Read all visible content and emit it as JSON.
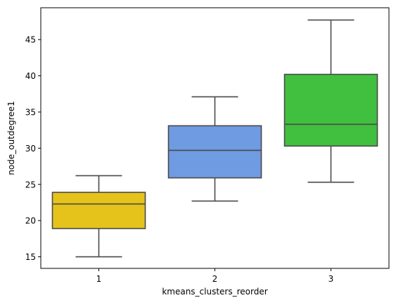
{
  "chart_data": {
    "type": "box",
    "title": "",
    "xlabel": "kmeans_clusters_reorder",
    "ylabel": "node_outdegree1",
    "ylim": [
      13.4,
      49.4
    ],
    "yticks": [
      15,
      20,
      25,
      30,
      35,
      40,
      45
    ],
    "grid": false,
    "legend": "none",
    "categories": [
      "1",
      "2",
      "3"
    ],
    "boxes": [
      {
        "category": "1",
        "whisker_low": 15.0,
        "q1": 18.9,
        "median": 22.3,
        "q3": 23.9,
        "whisker_high": 26.2,
        "color": "#E5C31B"
      },
      {
        "category": "2",
        "whisker_low": 22.7,
        "q1": 25.9,
        "median": 29.7,
        "q3": 33.1,
        "whisker_high": 37.1,
        "color": "#6F9BE2"
      },
      {
        "category": "3",
        "whisker_low": 25.3,
        "q1": 30.3,
        "median": 33.3,
        "q3": 40.2,
        "whisker_high": 47.7,
        "color": "#41BF3E"
      }
    ],
    "line_color": "#4A4A4A"
  }
}
